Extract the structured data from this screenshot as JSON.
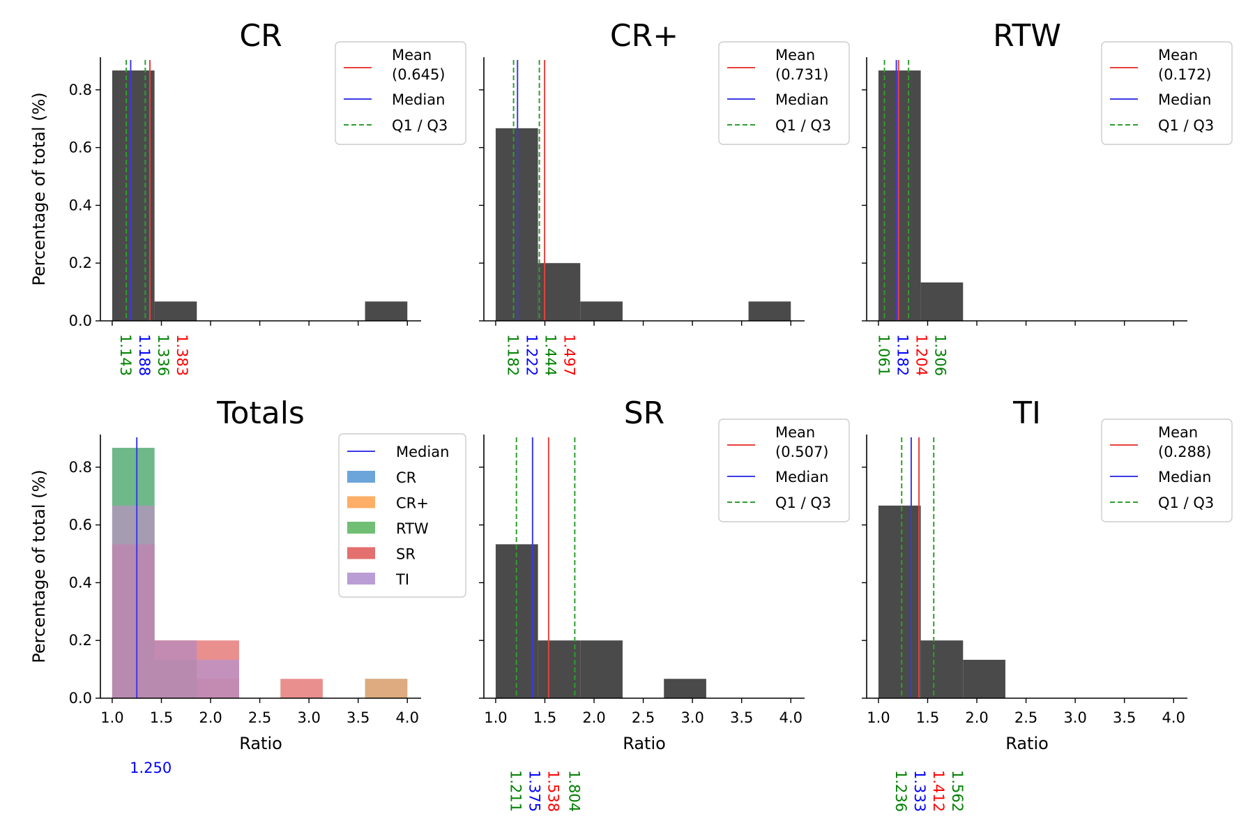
{
  "colors": {
    "bar": "#4a4a4a",
    "mean": "#e8413c",
    "median": "#3a3ae6",
    "quartile": "#2e9e2e",
    "label_mean": "#ff0000",
    "label_median": "#0000ff",
    "label_quartile": "#008000",
    "series_colors": [
      "#5b9bd5",
      "#ffa556",
      "#62b865",
      "#e0605e",
      "#b292d0"
    ]
  },
  "chart_data": [
    {
      "id": "CR",
      "type": "bar",
      "title": "CR",
      "xlabel": "",
      "ylabel": "Percentage of total (%)",
      "xlim": [
        0.88,
        4.14
      ],
      "ylim": [
        0,
        0.913
      ],
      "xticks": [
        1.0,
        1.5,
        2.0,
        2.5,
        3.0,
        3.5,
        4.0
      ],
      "show_xtick_labels": false,
      "yticks": [
        0.0,
        0.2,
        0.4,
        0.6,
        0.8
      ],
      "show_ytick_labels": true,
      "bin_edges": [
        1.0,
        1.43,
        1.86,
        2.29,
        2.71,
        3.14,
        3.57,
        4.0
      ],
      "values": [
        0.867,
        0.067,
        0,
        0,
        0,
        0,
        0.067
      ],
      "mean": 1.383,
      "median": 1.188,
      "q1": 1.143,
      "q3": 1.336,
      "legend": {
        "mean_label": "Mean",
        "mean_value": "(0.645)",
        "median_label": "Median",
        "quartile_label": "Q1 / Q3"
      },
      "value_labels": [
        {
          "text": "1.143",
          "kind": "quartile"
        },
        {
          "text": "1.188",
          "kind": "median"
        },
        {
          "text": "1.336",
          "kind": "quartile"
        },
        {
          "text": "1.383",
          "kind": "mean"
        }
      ]
    },
    {
      "id": "CRplus",
      "type": "bar",
      "title": "CR+",
      "xlabel": "",
      "ylabel": "",
      "xlim": [
        0.88,
        4.14
      ],
      "ylim": [
        0,
        0.913
      ],
      "xticks": [
        1.0,
        1.5,
        2.0,
        2.5,
        3.0,
        3.5,
        4.0
      ],
      "show_xtick_labels": false,
      "yticks": [
        0.0,
        0.2,
        0.4,
        0.6,
        0.8
      ],
      "show_ytick_labels": false,
      "bin_edges": [
        1.0,
        1.43,
        1.86,
        2.29,
        2.71,
        3.14,
        3.57,
        4.0
      ],
      "values": [
        0.667,
        0.2,
        0.067,
        0,
        0,
        0,
        0.067
      ],
      "mean": 1.497,
      "median": 1.222,
      "q1": 1.182,
      "q3": 1.444,
      "legend": {
        "mean_label": "Mean",
        "mean_value": "(0.731)",
        "median_label": "Median",
        "quartile_label": "Q1 / Q3"
      },
      "value_labels": [
        {
          "text": "1.182",
          "kind": "quartile"
        },
        {
          "text": "1.222",
          "kind": "median"
        },
        {
          "text": "1.444",
          "kind": "quartile"
        },
        {
          "text": "1.497",
          "kind": "mean"
        }
      ]
    },
    {
      "id": "RTW",
      "type": "bar",
      "title": "RTW",
      "xlabel": "",
      "ylabel": "",
      "xlim": [
        0.88,
        4.14
      ],
      "ylim": [
        0,
        0.913
      ],
      "xticks": [
        1.0,
        1.5,
        2.0,
        2.5,
        3.0,
        3.5,
        4.0
      ],
      "show_xtick_labels": false,
      "yticks": [
        0.0,
        0.2,
        0.4,
        0.6,
        0.8
      ],
      "show_ytick_labels": false,
      "bin_edges": [
        1.0,
        1.43,
        1.86,
        2.29,
        2.71,
        3.14,
        3.57,
        4.0
      ],
      "values": [
        0.867,
        0.133,
        0,
        0,
        0,
        0,
        0
      ],
      "mean": 1.204,
      "median": 1.182,
      "q1": 1.061,
      "q3": 1.306,
      "legend": {
        "mean_label": "Mean",
        "mean_value": "(0.172)",
        "median_label": "Median",
        "quartile_label": "Q1 / Q3"
      },
      "value_labels": [
        {
          "text": "1.061",
          "kind": "quartile"
        },
        {
          "text": "1.182",
          "kind": "median"
        },
        {
          "text": "1.204",
          "kind": "mean"
        },
        {
          "text": "1.306",
          "kind": "quartile"
        }
      ]
    },
    {
      "id": "Totals",
      "type": "bar",
      "title": "Totals",
      "xlabel": "Ratio",
      "ylabel": "Percentage of total (%)",
      "xlim": [
        0.88,
        4.14
      ],
      "ylim": [
        0,
        0.913
      ],
      "xticks": [
        1.0,
        1.5,
        2.0,
        2.5,
        3.0,
        3.5,
        4.0
      ],
      "show_xtick_labels": true,
      "xtick_labels": [
        "1.0",
        "1.5",
        "2.0",
        "2.5",
        "3.0",
        "3.5",
        "4.0"
      ],
      "yticks": [
        0.0,
        0.2,
        0.4,
        0.6,
        0.8
      ],
      "show_ytick_labels": true,
      "bin_edges": [
        1.0,
        1.43,
        1.86,
        2.29,
        2.71,
        3.14,
        3.57,
        4.0
      ],
      "series": [
        {
          "name": "CR",
          "values": [
            0.867,
            0.067,
            0,
            0,
            0,
            0,
            0.067
          ]
        },
        {
          "name": "CR+",
          "values": [
            0.667,
            0.2,
            0.067,
            0,
            0,
            0,
            0.067
          ]
        },
        {
          "name": "RTW",
          "values": [
            0.867,
            0.133,
            0,
            0,
            0,
            0,
            0
          ]
        },
        {
          "name": "SR",
          "values": [
            0.533,
            0.2,
            0.2,
            0,
            0.067,
            0,
            0
          ]
        },
        {
          "name": "TI",
          "values": [
            0.667,
            0.2,
            0.133,
            0,
            0,
            0,
            0
          ]
        }
      ],
      "median": 1.25,
      "legend": {
        "median_label": "Median"
      },
      "median_text": "1.250"
    },
    {
      "id": "SR",
      "type": "bar",
      "title": "SR",
      "xlabel": "Ratio",
      "ylabel": "",
      "xlim": [
        0.88,
        4.14
      ],
      "ylim": [
        0,
        0.913
      ],
      "xticks": [
        1.0,
        1.5,
        2.0,
        2.5,
        3.0,
        3.5,
        4.0
      ],
      "show_xtick_labels": true,
      "xtick_labels": [
        "1.0",
        "1.5",
        "2.0",
        "2.5",
        "3.0",
        "3.5",
        "4.0"
      ],
      "yticks": [
        0.0,
        0.2,
        0.4,
        0.6,
        0.8
      ],
      "show_ytick_labels": false,
      "bin_edges": [
        1.0,
        1.43,
        1.86,
        2.29,
        2.71,
        3.14,
        3.57,
        4.0
      ],
      "values": [
        0.533,
        0.2,
        0.2,
        0,
        0.067,
        0,
        0
      ],
      "mean": 1.538,
      "median": 1.375,
      "q1": 1.211,
      "q3": 1.804,
      "legend": {
        "mean_label": "Mean",
        "mean_value": "(0.507)",
        "median_label": "Median",
        "quartile_label": "Q1 / Q3"
      },
      "value_labels": [
        {
          "text": "1.211",
          "kind": "quartile"
        },
        {
          "text": "1.375",
          "kind": "median"
        },
        {
          "text": "1.538",
          "kind": "mean"
        },
        {
          "text": "1.804",
          "kind": "quartile"
        }
      ]
    },
    {
      "id": "TI",
      "type": "bar",
      "title": "TI",
      "xlabel": "Ratio",
      "ylabel": "",
      "xlim": [
        0.88,
        4.14
      ],
      "ylim": [
        0,
        0.913
      ],
      "xticks": [
        1.0,
        1.5,
        2.0,
        2.5,
        3.0,
        3.5,
        4.0
      ],
      "show_xtick_labels": true,
      "xtick_labels": [
        "1.0",
        "1.5",
        "2.0",
        "2.5",
        "3.0",
        "3.5",
        "4.0"
      ],
      "yticks": [
        0.0,
        0.2,
        0.4,
        0.6,
        0.8
      ],
      "show_ytick_labels": false,
      "bin_edges": [
        1.0,
        1.43,
        1.86,
        2.29,
        2.71,
        3.14,
        3.57,
        4.0
      ],
      "values": [
        0.667,
        0.2,
        0.133,
        0,
        0,
        0,
        0
      ],
      "mean": 1.412,
      "median": 1.333,
      "q1": 1.236,
      "q3": 1.562,
      "legend": {
        "mean_label": "Mean",
        "mean_value": "(0.288)",
        "median_label": "Median",
        "quartile_label": "Q1 / Q3"
      },
      "value_labels": [
        {
          "text": "1.236",
          "kind": "quartile"
        },
        {
          "text": "1.333",
          "kind": "median"
        },
        {
          "text": "1.412",
          "kind": "mean"
        },
        {
          "text": "1.562",
          "kind": "quartile"
        }
      ]
    }
  ],
  "ytick_labels": [
    "0.0",
    "0.2",
    "0.4",
    "0.6",
    "0.8"
  ]
}
